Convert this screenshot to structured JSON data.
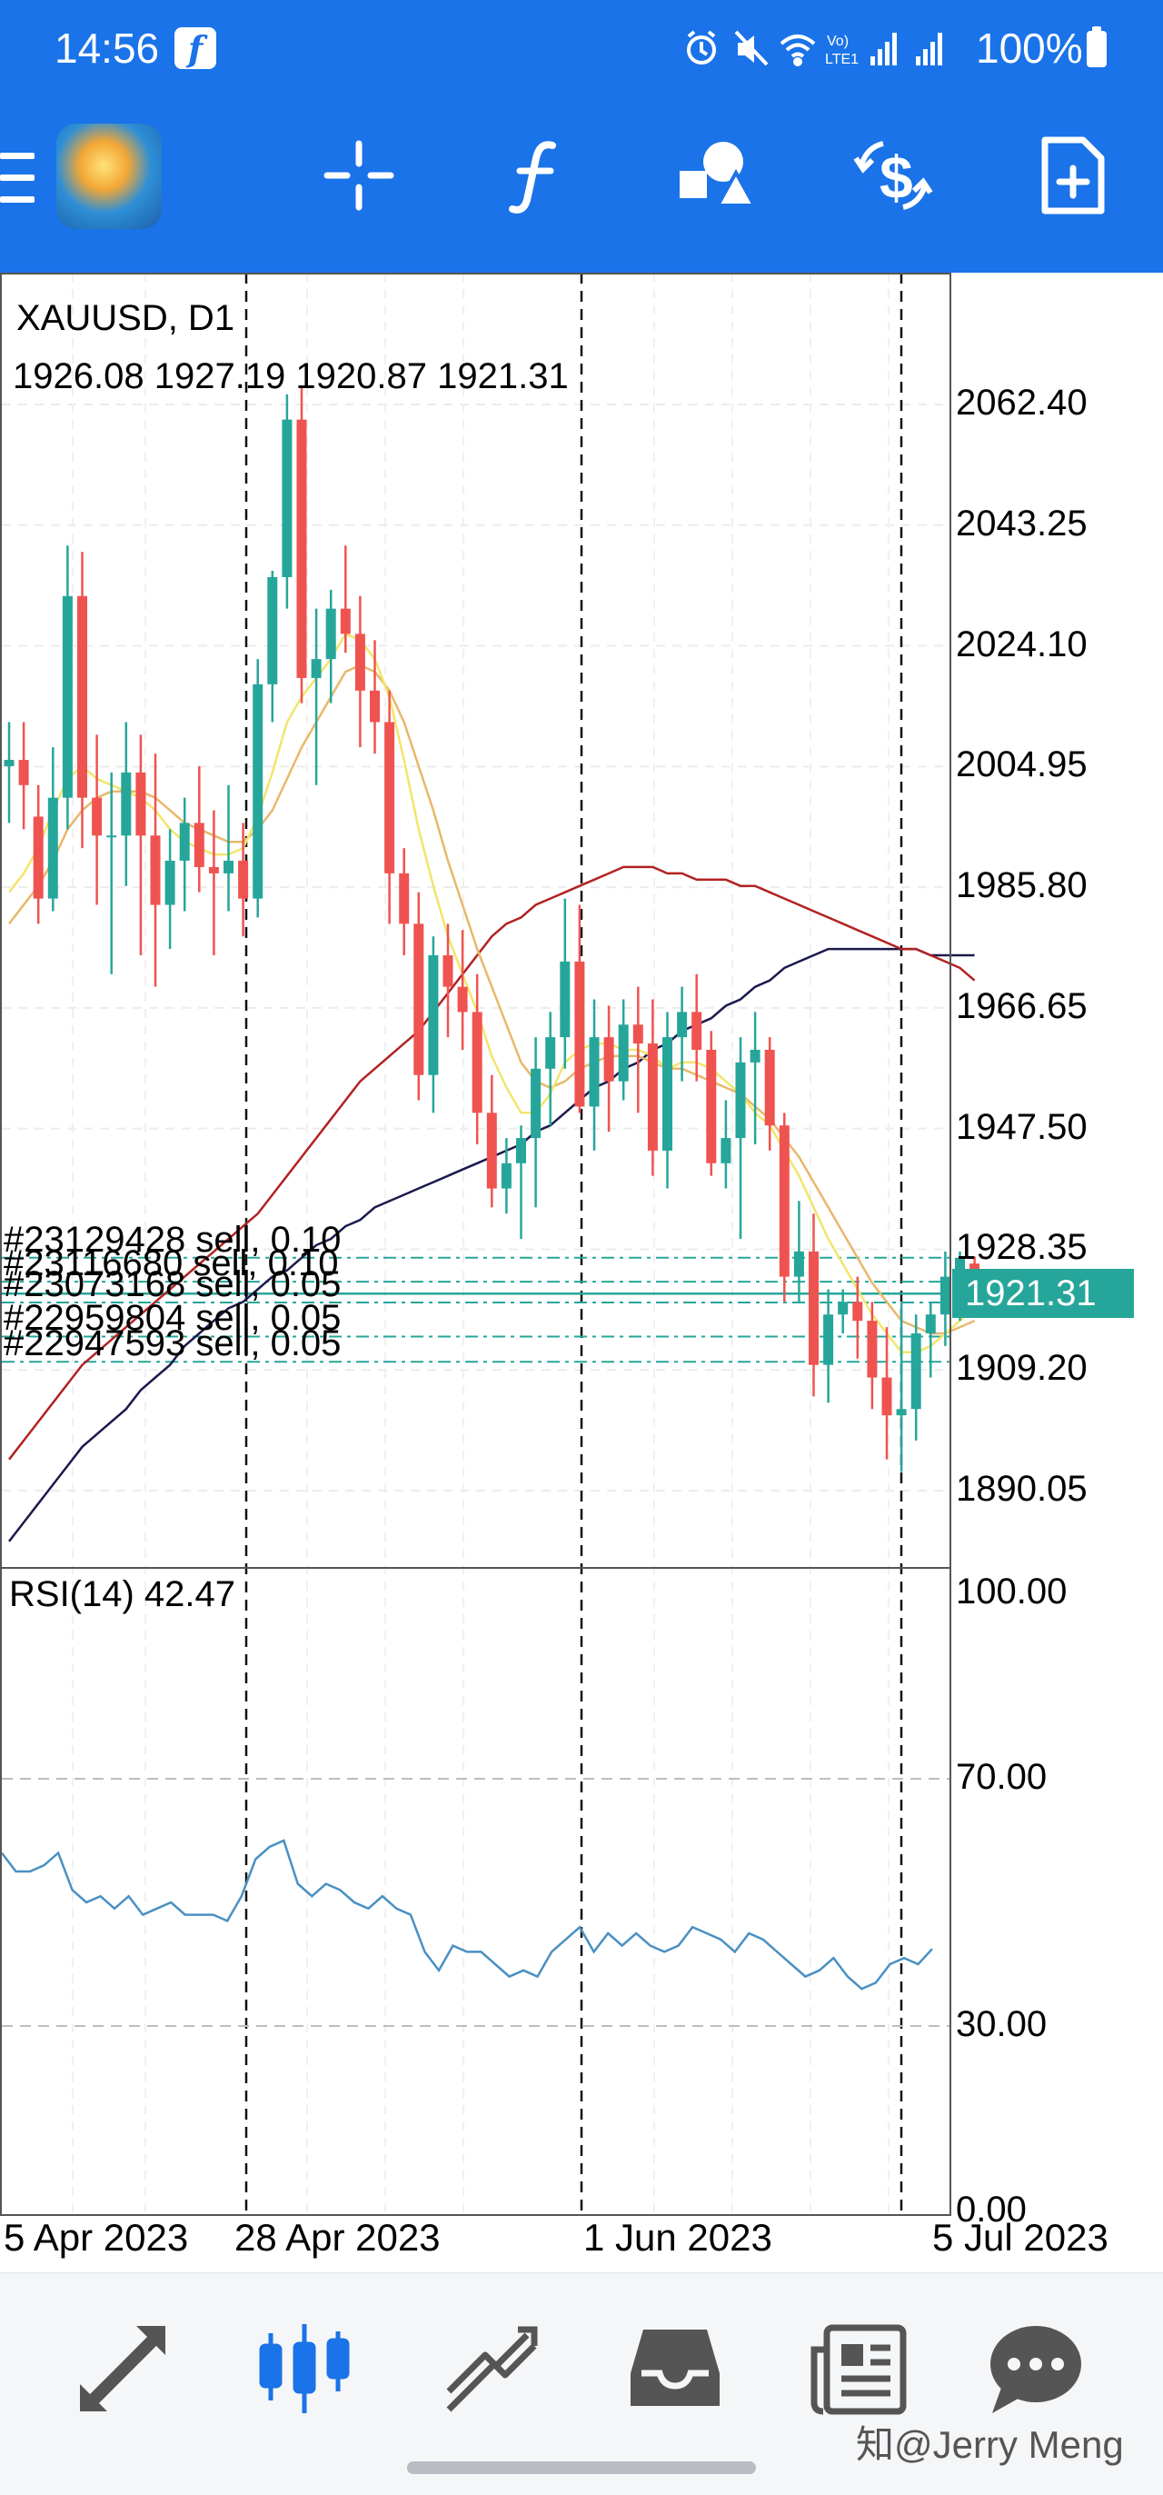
{
  "status_bar": {
    "time": "14:56",
    "battery": "100%"
  },
  "toolbar": {
    "icons": [
      "menu-icon",
      "app-logo",
      "crosshair-icon",
      "indicators-icon",
      "objects-icon",
      "trade-icon",
      "new-order-icon"
    ]
  },
  "chart": {
    "symbol": "XAUUSD, D1",
    "ohlc": "1926.08 1927.19 1920.87 1921.31",
    "price_axis": [
      "2062.40",
      "2043.25",
      "2024.10",
      "2004.95",
      "1985.80",
      "1966.65",
      "1947.50",
      "1928.35",
      "1909.20",
      "1890.05"
    ],
    "current_price": "1921.31",
    "orders": [
      {
        "label": "#23129428 sell, 0.10",
        "price": 1927.0
      },
      {
        "label": "#23116680 sell, 0.10",
        "price": 1923.2
      },
      {
        "label": "#23073168 sell, 0.05",
        "price": 1919.9
      },
      {
        "label": "#22959804 sell, 0.05",
        "price": 1914.5
      },
      {
        "label": "#22947593 sell, 0.05",
        "price": 1910.5
      }
    ],
    "rsi": {
      "label": "RSI(14) 42.47",
      "axis": [
        "100.00",
        "70.00",
        "30.00",
        "0.00"
      ],
      "values": [
        58,
        55,
        55,
        56,
        58,
        52,
        50,
        51,
        49,
        51,
        48,
        49,
        50,
        48,
        48,
        48,
        47,
        51,
        57,
        59,
        60,
        53,
        51,
        53,
        52,
        50,
        49,
        51,
        49,
        48,
        42,
        39,
        43,
        42,
        42,
        40,
        38,
        39,
        38,
        42,
        44,
        46,
        42,
        45,
        43,
        45,
        43,
        42,
        43,
        46,
        45,
        44,
        42,
        45,
        44,
        42,
        40,
        38,
        39,
        41,
        38,
        36,
        37,
        40,
        41,
        40,
        42.47
      ]
    },
    "dates": [
      "5 Apr 2023",
      "28 Apr 2023",
      "1 Jun 2023",
      "5 Jul 2023"
    ],
    "colors": {
      "bull": "#26a69a",
      "bear": "#ef5350",
      "ma_fast": "#f2e56b",
      "ma_mid": "#e8b86a",
      "ma_slow": "#b22222",
      "ma_long": "#1a1a4e",
      "header": "#1a73e8"
    },
    "candles": [
      [
        2005,
        2012,
        1996,
        2006
      ],
      [
        2006,
        2012,
        1995,
        2002
      ],
      [
        1997,
        2002,
        1980,
        1984
      ],
      [
        1984,
        2008,
        1982,
        2000
      ],
      [
        2000,
        2040,
        1995,
        2032
      ],
      [
        2032,
        2039,
        1992,
        2000
      ],
      [
        2000,
        2010,
        1983,
        1994
      ],
      [
        1994,
        2004,
        1972,
        1994
      ],
      [
        1994,
        2012,
        1986,
        2004
      ],
      [
        2004,
        2010,
        1975,
        1994
      ],
      [
        1994,
        2007,
        1970,
        1983
      ],
      [
        1983,
        1995,
        1976,
        1990
      ],
      [
        1990,
        2000,
        1982,
        1996
      ],
      [
        1996,
        2005,
        1985,
        1989
      ],
      [
        1989,
        1998,
        1975,
        1988
      ],
      [
        1988,
        2002,
        1982,
        1990
      ],
      [
        1990,
        1996,
        1978,
        1984
      ],
      [
        1984,
        2022,
        1981,
        2018
      ],
      [
        2018,
        2036,
        2012,
        2035
      ],
      [
        2035,
        2064,
        2030,
        2060
      ],
      [
        2060,
        2065,
        2015,
        2019
      ],
      [
        2019,
        2030,
        2002,
        2022
      ],
      [
        2022,
        2033,
        2015,
        2030
      ],
      [
        2030,
        2040,
        2023,
        2026
      ],
      [
        2026,
        2032,
        2008,
        2017
      ],
      [
        2017,
        2025,
        2007,
        2012
      ],
      [
        2012,
        2017,
        1980,
        1988
      ],
      [
        1988,
        1992,
        1975,
        1980
      ],
      [
        1980,
        1985,
        1952,
        1956
      ],
      [
        1956,
        1978,
        1950,
        1975
      ],
      [
        1975,
        1980,
        1962,
        1970
      ],
      [
        1970,
        1979,
        1960,
        1966
      ],
      [
        1966,
        1972,
        1945,
        1950
      ],
      [
        1950,
        1956,
        1935,
        1938
      ],
      [
        1938,
        1946,
        1934,
        1942
      ],
      [
        1942,
        1948,
        1930,
        1946
      ],
      [
        1946,
        1962,
        1935,
        1957
      ],
      [
        1957,
        1966,
        1948,
        1962
      ],
      [
        1962,
        1984,
        1957,
        1974
      ],
      [
        1974,
        1983,
        1950,
        1951
      ],
      [
        1951,
        1968,
        1944,
        1962
      ],
      [
        1962,
        1967,
        1947,
        1955
      ],
      [
        1955,
        1968,
        1952,
        1964
      ],
      [
        1964,
        1970,
        1950,
        1961
      ],
      [
        1961,
        1968,
        1940,
        1944
      ],
      [
        1944,
        1966,
        1938,
        1962
      ],
      [
        1962,
        1970,
        1955,
        1966
      ],
      [
        1966,
        1972,
        1955,
        1960
      ],
      [
        1960,
        1963,
        1940,
        1942
      ],
      [
        1942,
        1952,
        1938,
        1946
      ],
      [
        1946,
        1962,
        1930,
        1958
      ],
      [
        1958,
        1966,
        1945,
        1960
      ],
      [
        1960,
        1962,
        1944,
        1948
      ],
      [
        1948,
        1950,
        1920,
        1924
      ],
      [
        1924,
        1936,
        1920,
        1928
      ],
      [
        1928,
        1934,
        1905,
        1910
      ],
      [
        1910,
        1922,
        1904,
        1918
      ],
      [
        1918,
        1922,
        1915,
        1920
      ],
      [
        1920,
        1924,
        1911,
        1917
      ],
      [
        1917,
        1920,
        1903,
        1908
      ],
      [
        1908,
        1916,
        1895,
        1902
      ],
      [
        1902,
        1920,
        1893,
        1903
      ],
      [
        1903,
        1918,
        1898,
        1915
      ],
      [
        1915,
        1920,
        1908,
        1918
      ],
      [
        1918,
        1928,
        1913,
        1924
      ],
      [
        1924,
        1928,
        1917,
        1927
      ],
      [
        1926.08,
        1927.19,
        1920.87,
        1921.31
      ]
    ],
    "ma_fast": [
      1985,
      1988,
      1992,
      1998,
      2003,
      2005,
      2003,
      2002,
      2001,
      2000,
      1998,
      1995,
      1993,
      1992,
      1991,
      1991,
      1992,
      1997,
      2004,
      2012,
      2016,
      2019,
      2022,
      2026,
      2025,
      2022,
      2016,
      2006,
      1995,
      1986,
      1978,
      1972,
      1966,
      1959,
      1954,
      1950,
      1950,
      1953,
      1958,
      1960,
      1961,
      1961,
      1960,
      1960,
      1959,
      1957,
      1958,
      1958,
      1957,
      1955,
      1953,
      1950,
      1948,
      1944,
      1940,
      1935,
      1930,
      1926,
      1922,
      1918,
      1915,
      1912,
      1912,
      1913,
      1915,
      1917,
      1919
    ],
    "ma_mid": [
      1980,
      1983,
      1986,
      1990,
      1995,
      1998,
      2000,
      2001,
      2001,
      2001,
      2000,
      1998,
      1996,
      1995,
      1994,
      1993,
      1993,
      1995,
      1998,
      2003,
      2008,
      2012,
      2016,
      2020,
      2021,
      2020,
      2017,
      2012,
      2005,
      1998,
      1990,
      1983,
      1976,
      1970,
      1964,
      1958,
      1955,
      1954,
      1955,
      1957,
      1958,
      1959,
      1959,
      1959,
      1958,
      1957,
      1957,
      1956,
      1955,
      1954,
      1953,
      1951,
      1949,
      1946,
      1943,
      1939,
      1935,
      1931,
      1927,
      1923,
      1920,
      1917,
      1916,
      1915,
      1915,
      1916,
      1917
    ],
    "ma_slow": [
      1895,
      1898,
      1901,
      1904,
      1907,
      1910,
      1912,
      1914,
      1916,
      1918,
      1920,
      1922,
      1924,
      1926,
      1928,
      1930,
      1932,
      1934,
      1937,
      1940,
      1943,
      1946,
      1949,
      1952,
      1955,
      1957,
      1959,
      1961,
      1963,
      1966,
      1969,
      1972,
      1975,
      1978,
      1980,
      1981,
      1983,
      1984,
      1985,
      1986,
      1987,
      1988,
      1989,
      1989,
      1989,
      1988,
      1988,
      1987,
      1987,
      1987,
      1986,
      1986,
      1985,
      1984,
      1983,
      1982,
      1981,
      1980,
      1979,
      1978,
      1977,
      1976,
      1976,
      1975,
      1974,
      1973,
      1971
    ],
    "ma_long": [
      1882,
      1885,
      1888,
      1891,
      1894,
      1897,
      1899,
      1901,
      1903,
      1906,
      1908,
      1910,
      1913,
      1915,
      1917,
      1919,
      1920,
      1922,
      1924,
      1925,
      1927,
      1929,
      1930,
      1932,
      1933,
      1935,
      1936,
      1937,
      1938,
      1939,
      1940,
      1941,
      1942,
      1943,
      1944,
      1945,
      1947,
      1948,
      1950,
      1952,
      1954,
      1955,
      1957,
      1958,
      1960,
      1961,
      1963,
      1964,
      1965,
      1967,
      1968,
      1970,
      1971,
      1973,
      1974,
      1975,
      1976,
      1976,
      1976,
      1976,
      1976,
      1976,
      1976,
      1975,
      1975,
      1975,
      1975
    ]
  },
  "bottom_nav": {
    "icons": [
      "quotes-icon",
      "chart-icon",
      "trade-icon",
      "history-icon",
      "news-icon",
      "messages-icon"
    ],
    "watermark": "知@Jerry Meng"
  }
}
